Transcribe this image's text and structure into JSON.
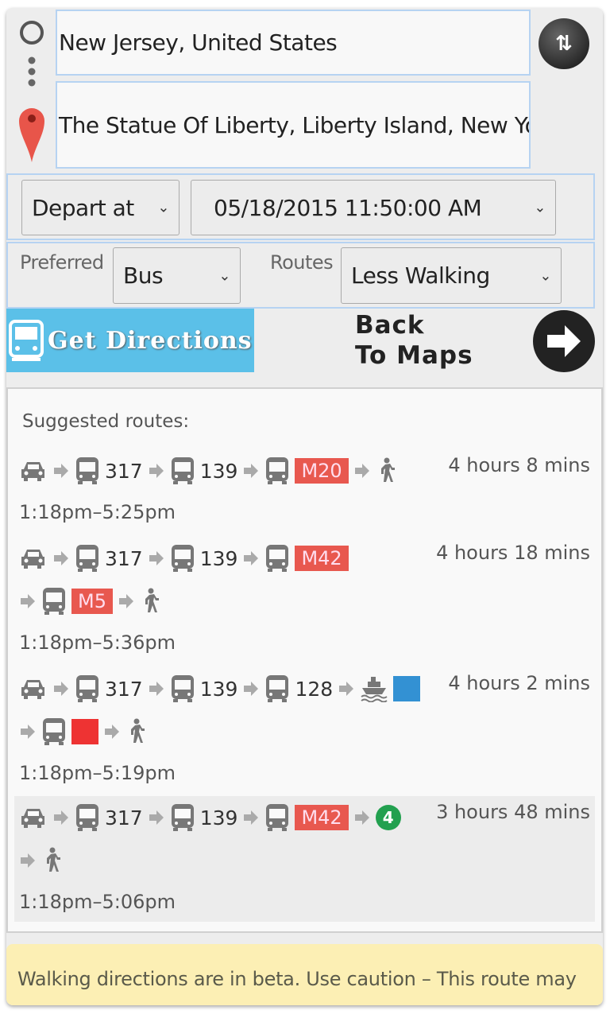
{
  "trip": {
    "origin": "New Jersey, United States",
    "destination": "The Statue Of Liberty, Liberty Island, New York, NY, United States",
    "swap_icon": "swap-arrows-icon"
  },
  "options": {
    "time_mode": "Depart at",
    "datetime": "05/18/2015 11:50:00 AM",
    "preferred_label": "Preferred",
    "preferred_value": "Bus",
    "routes_label": "Routes",
    "routes_value": "Less Walking"
  },
  "actions": {
    "get_directions": "Get Directions",
    "back_line1": "Back",
    "back_line2": "To Maps"
  },
  "results": {
    "heading": "Suggested routes:",
    "routes": [
      {
        "duration": "4 hours 8 mins",
        "time": "1:18pm–5:25pm",
        "lines": [
          [
            {
              "t": "car"
            },
            {
              "t": "arrow"
            },
            {
              "t": "bus",
              "label": "317"
            },
            {
              "t": "arrow"
            },
            {
              "t": "bus",
              "label": "139"
            },
            {
              "t": "arrow"
            },
            {
              "t": "bus"
            },
            {
              "t": "badge",
              "label": "M20",
              "color": "#e8584f"
            },
            {
              "t": "arrow"
            },
            {
              "t": "walk"
            }
          ]
        ]
      },
      {
        "duration": "4 hours 18 mins",
        "time": "1:18pm–5:36pm",
        "lines": [
          [
            {
              "t": "car"
            },
            {
              "t": "arrow"
            },
            {
              "t": "bus",
              "label": "317"
            },
            {
              "t": "arrow"
            },
            {
              "t": "bus",
              "label": "139"
            },
            {
              "t": "arrow"
            },
            {
              "t": "bus"
            },
            {
              "t": "badge",
              "label": "M42",
              "color": "#e8584f"
            }
          ],
          [
            {
              "t": "arrow"
            },
            {
              "t": "bus"
            },
            {
              "t": "badge",
              "label": "M5",
              "color": "#e8584f"
            },
            {
              "t": "arrow"
            },
            {
              "t": "walk"
            }
          ]
        ]
      },
      {
        "duration": "4 hours 2 mins",
        "time": "1:18pm–5:19pm",
        "lines": [
          [
            {
              "t": "car"
            },
            {
              "t": "arrow"
            },
            {
              "t": "bus",
              "label": "317"
            },
            {
              "t": "arrow"
            },
            {
              "t": "bus",
              "label": "139"
            },
            {
              "t": "arrow"
            },
            {
              "t": "bus",
              "label": "128"
            },
            {
              "t": "arrow"
            },
            {
              "t": "ferry"
            },
            {
              "t": "square",
              "color": "#3391d3"
            }
          ],
          [
            {
              "t": "arrow"
            },
            {
              "t": "bus"
            },
            {
              "t": "square",
              "color": "#ee3333"
            },
            {
              "t": "arrow"
            },
            {
              "t": "walk"
            }
          ]
        ]
      },
      {
        "duration": "3 hours 48 mins",
        "time": "1:18pm–5:06pm",
        "selected": true,
        "lines": [
          [
            {
              "t": "car"
            },
            {
              "t": "arrow"
            },
            {
              "t": "bus",
              "label": "317"
            },
            {
              "t": "arrow"
            },
            {
              "t": "bus",
              "label": "139"
            },
            {
              "t": "arrow"
            },
            {
              "t": "bus"
            },
            {
              "t": "badge",
              "label": "M42",
              "color": "#e8584f"
            },
            {
              "t": "arrow"
            },
            {
              "t": "circle",
              "label": "4",
              "color": "#22a04f"
            }
          ],
          [
            {
              "t": "arrow"
            },
            {
              "t": "walk"
            }
          ]
        ]
      }
    ]
  },
  "warning": "Walking directions are in beta. Use caution – This route may be missing sidewalks or pedestrian paths."
}
